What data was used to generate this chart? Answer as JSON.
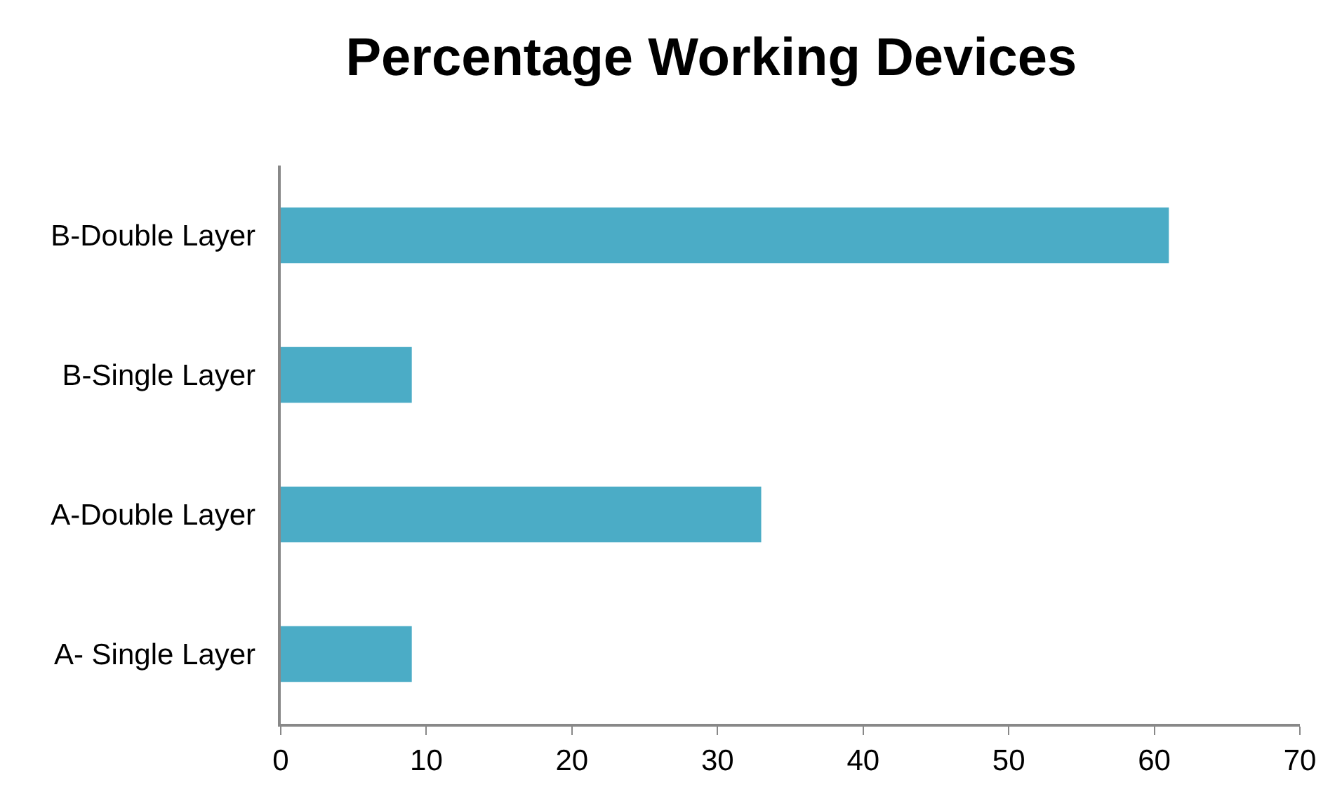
{
  "chart_data": {
    "type": "bar",
    "orientation": "horizontal",
    "title": "Percentage Working Devices",
    "categories": [
      "B-Double Layer",
      "B-Single Layer",
      "A-Double Layer",
      "A- Single Layer"
    ],
    "values": [
      61,
      9,
      33,
      9
    ],
    "color": "#4bacc6",
    "xlim": [
      0,
      70
    ],
    "xticks": [
      0,
      10,
      20,
      30,
      40,
      50,
      60,
      70
    ],
    "grid": false,
    "legend": false
  }
}
